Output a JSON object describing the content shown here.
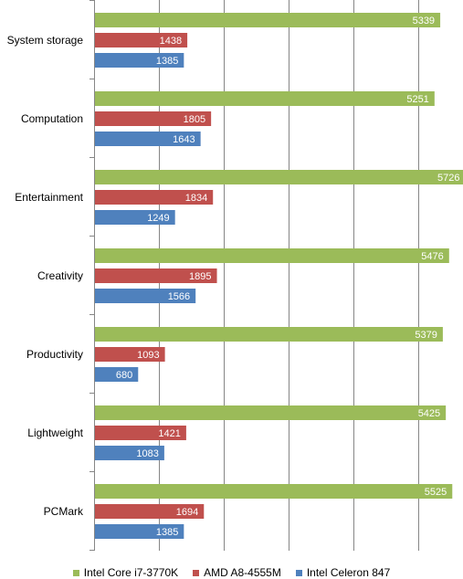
{
  "chart_data": {
    "type": "bar",
    "orientation": "horizontal",
    "categories": [
      "System storage",
      "Computation",
      "Entertainment",
      "Creativity",
      "Productivity",
      "Lightweight",
      "PCMark"
    ],
    "series": [
      {
        "name": "Intel Core i7-3770K",
        "color": "#9BBB59",
        "values": [
          5339,
          5251,
          5726,
          5476,
          5379,
          5425,
          5525
        ]
      },
      {
        "name": "AMD A8-4555M",
        "color": "#C0504D",
        "values": [
          1438,
          1805,
          1834,
          1895,
          1093,
          1421,
          1694
        ]
      },
      {
        "name": "Intel Celeron 847",
        "color": "#4F81BD",
        "values": [
          1385,
          1643,
          1249,
          1566,
          680,
          1083,
          1385
        ]
      }
    ],
    "xlim": [
      0,
      6000
    ],
    "grid": true,
    "legend_position": "bottom",
    "data_labels": true,
    "title": "",
    "xlabel": "",
    "ylabel": ""
  }
}
